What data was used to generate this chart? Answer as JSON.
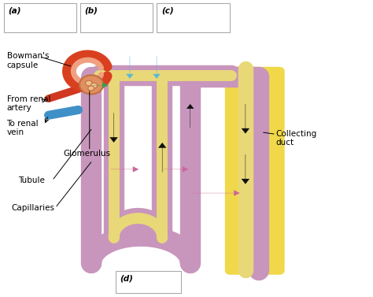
{
  "bg_color": "#ffffff",
  "box_a_label": "(a)",
  "box_b_label": "(b)",
  "box_c_label": "(c)",
  "box_d_label": "(d)",
  "arrow_a_color": "#3a9e4a",
  "arrow_b_color": "#cc6699",
  "arrow_c_color": "#5bb8d4",
  "arrow_d_color": "#c87941",
  "tubule_color": "#c896bc",
  "yellow": "#e8d878",
  "black": "#111111",
  "blue_arrow": "#5bb8d4",
  "pink_arrow": "#cc6699",
  "green_arrow": "#3a9e4a",
  "red_vessel": "#d03820",
  "blue_vessel": "#4090c8",
  "collecting_bg": "#f0d84a",
  "glom_color": "#e09060",
  "bowman_color": "#d84020"
}
